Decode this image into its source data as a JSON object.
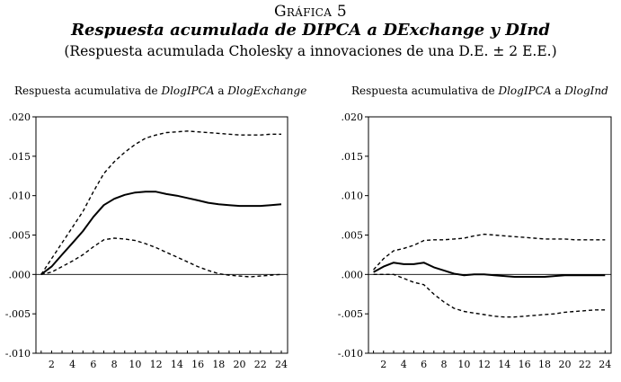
{
  "header": {
    "label": "Gráfica 5",
    "title": "Respuesta acumulada de DIPCA a DExchange y DInd",
    "subtitle": "(Respuesta acumulada Cholesky a innovaciones de una D.E. ± 2 E.E.)"
  },
  "chart_data": [
    {
      "type": "line",
      "title_prefix": "Respuesta acumulativa de ",
      "title_var1": "DlogIPCA",
      "title_mid": " a ",
      "title_var2": "DlogExchange",
      "x": [
        1,
        2,
        3,
        4,
        5,
        6,
        7,
        8,
        9,
        10,
        11,
        12,
        13,
        14,
        15,
        16,
        17,
        18,
        19,
        20,
        21,
        22,
        23,
        24
      ],
      "x_ticks": [
        "2",
        "4",
        "6",
        "8",
        "10",
        "12",
        "14",
        "16",
        "18",
        "20",
        "22",
        "24"
      ],
      "y_ticks": [
        ".020",
        ".015",
        ".010",
        ".005",
        ".000",
        "-.005",
        "-.010"
      ],
      "ylim": [
        -0.01,
        0.02
      ],
      "zero_line": true,
      "series": [
        {
          "role": "response",
          "style": "solid",
          "values": [
            0.0,
            0.001,
            0.0025,
            0.004,
            0.0055,
            0.0073,
            0.0088,
            0.0096,
            0.0101,
            0.0104,
            0.0105,
            0.0105,
            0.0102,
            0.01,
            0.0097,
            0.0094,
            0.0091,
            0.0089,
            0.0088,
            0.0087,
            0.0087,
            0.0087,
            0.0088,
            0.0089
          ]
        },
        {
          "role": "upper",
          "style": "dashed",
          "values": [
            0.0,
            0.002,
            0.004,
            0.006,
            0.008,
            0.0105,
            0.0128,
            0.0143,
            0.0155,
            0.0165,
            0.0173,
            0.0177,
            0.018,
            0.0181,
            0.0182,
            0.0181,
            0.018,
            0.0179,
            0.0178,
            0.0177,
            0.0177,
            0.0177,
            0.0178,
            0.0178
          ]
        },
        {
          "role": "lower",
          "style": "dashed",
          "values": [
            0.0,
            0.0003,
            0.001,
            0.0017,
            0.0025,
            0.0035,
            0.0044,
            0.0046,
            0.0045,
            0.0043,
            0.0039,
            0.0034,
            0.0028,
            0.0022,
            0.0016,
            0.001,
            0.0005,
            0.0001,
            -0.0001,
            -0.0002,
            -0.0003,
            -0.0002,
            -0.0001,
            0.0
          ]
        }
      ]
    },
    {
      "type": "line",
      "title_prefix": "Respuesta acumulativa de ",
      "title_var1": "DlogIPCA",
      "title_mid": " a ",
      "title_var2": "DlogInd",
      "x": [
        1,
        2,
        3,
        4,
        5,
        6,
        7,
        8,
        9,
        10,
        11,
        12,
        13,
        14,
        15,
        16,
        17,
        18,
        19,
        20,
        21,
        22,
        23,
        24
      ],
      "x_ticks": [
        "2",
        "4",
        "6",
        "8",
        "10",
        "12",
        "14",
        "16",
        "18",
        "20",
        "22",
        "24"
      ],
      "y_ticks": [
        ".020",
        ".015",
        ".010",
        ".005",
        ".000",
        "-.005",
        "-.010"
      ],
      "ylim": [
        -0.01,
        0.02
      ],
      "zero_line": true,
      "series": [
        {
          "role": "response",
          "style": "solid",
          "values": [
            0.0003,
            0.001,
            0.0015,
            0.0013,
            0.0013,
            0.0015,
            0.0009,
            0.0005,
            0.0001,
            -0.0001,
            0.0,
            0.0,
            -0.0001,
            -0.0002,
            -0.0003,
            -0.0003,
            -0.0003,
            -0.0003,
            -0.0002,
            -0.0001,
            -0.0001,
            -0.0001,
            -0.0001,
            -0.0001
          ]
        },
        {
          "role": "upper",
          "style": "dashed",
          "values": [
            0.0006,
            0.002,
            0.003,
            0.0033,
            0.0037,
            0.0043,
            0.0044,
            0.0044,
            0.0045,
            0.0046,
            0.0049,
            0.0051,
            0.005,
            0.0049,
            0.0048,
            0.0047,
            0.0046,
            0.0045,
            0.0045,
            0.0045,
            0.0044,
            0.0044,
            0.0044,
            0.0044
          ]
        },
        {
          "role": "lower",
          "style": "dashed",
          "values": [
            0.0,
            0.0,
            0.0,
            -0.0005,
            -0.001,
            -0.0013,
            -0.0025,
            -0.0035,
            -0.0043,
            -0.0047,
            -0.0049,
            -0.0051,
            -0.0053,
            -0.0054,
            -0.0054,
            -0.0053,
            -0.0052,
            -0.0051,
            -0.005,
            -0.0048,
            -0.0047,
            -0.0046,
            -0.0045,
            -0.0045
          ]
        }
      ]
    }
  ]
}
